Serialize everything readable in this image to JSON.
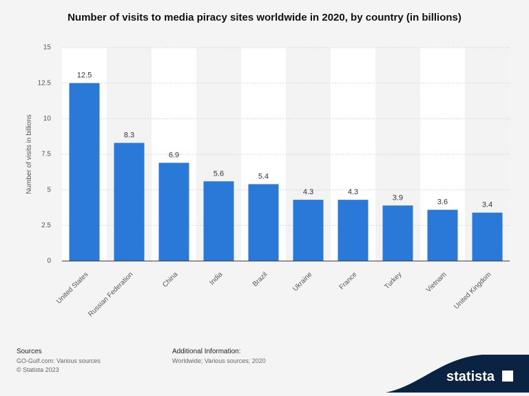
{
  "chart_data": {
    "type": "bar",
    "title": "Number of visits to media piracy sites worldwide in 2020, by country (in billions)",
    "y_label": "Number of visits in billions",
    "categories": [
      "United States",
      "Russian Federation",
      "China",
      "India",
      "Brazil",
      "Ukraine",
      "France",
      "Turkey",
      "Vietnam",
      "United Kingdom"
    ],
    "values": [
      12.5,
      8.3,
      6.9,
      5.6,
      5.4,
      4.3,
      4.3,
      3.9,
      3.6,
      3.4
    ],
    "color": "#2a78d8",
    "ylim": [
      0,
      15
    ],
    "yticks": [
      0,
      2.5,
      5,
      7.5,
      10,
      12.5,
      15
    ],
    "grid": true
  },
  "footer": {
    "sources_heading": "Sources",
    "sources": "GO-Gulf.com: Various sources",
    "copyright": "© Statista 2023",
    "info_heading": "Additional Information:",
    "info": "Worldwide; Various sources; 2020",
    "logo": "statista"
  }
}
